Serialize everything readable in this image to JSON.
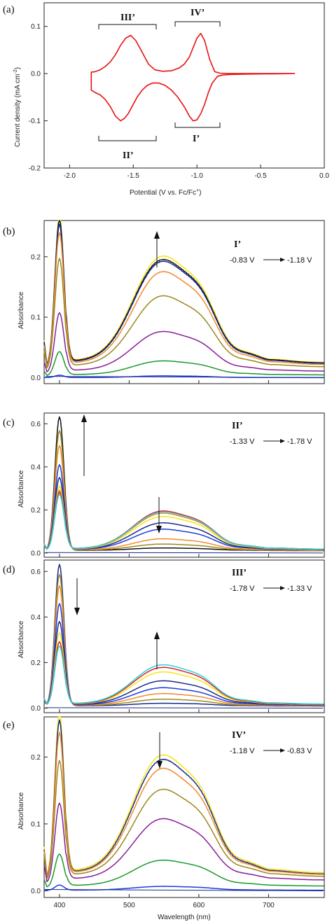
{
  "colors": {
    "cv": "#e81010",
    "black": "#111111",
    "yellow": "#f5e614",
    "navy": "#1a2a8c",
    "orange": "#f28a2c",
    "olive": "#9a8a1e",
    "purple": "#8a1e9a",
    "green": "#1a9a2a",
    "cyan": "#2ad4e0",
    "red": "#e02020",
    "blue": "#1a3ae0",
    "darkyellow": "#c8b400"
  },
  "panels": {
    "a": {
      "label": "(a)",
      "xlabel": "Potential (V vs. Fc/Fc",
      "xlabel_sup": "+",
      "xlabel_end": ")",
      "ylabel": "Current density (mA cm",
      "ylabel_sup": "-2",
      "ylabel_end": ")",
      "peaks": {
        "III": "III’",
        "IV": "IV’",
        "II": "II’",
        "I": "I’"
      }
    },
    "b": {
      "label": "(b)",
      "roman": "I’",
      "v_from": "-0.83 V",
      "v_to": "-1.18 V",
      "ylabel": "Absorbance"
    },
    "c": {
      "label": "(c)",
      "roman": "II’",
      "v_from": "-1.33 V",
      "v_to": "-1.78 V",
      "ylabel": "Absorbance"
    },
    "d": {
      "label": "(d)",
      "roman": "III’",
      "v_from": "-1.78 V",
      "v_to": "-1.33 V",
      "ylabel": "Absorbance"
    },
    "e": {
      "label": "(e)",
      "roman": "IV’",
      "v_from": "-1.18 V",
      "v_to": "-0.83 V",
      "ylabel": "Absorbance",
      "xlabel": "Wavelength (nm)"
    }
  },
  "chart_data": [
    {
      "id": "a",
      "type": "line",
      "xlabel": "Potential (V vs. Fc/Fc+)",
      "ylabel": "Current density (mA cm-2)",
      "xlim": [
        -2.2,
        0.0
      ],
      "ylim": [
        -0.2,
        0.15
      ],
      "xticks": [
        -2.0,
        -1.5,
        -1.0,
        -0.5,
        0.0
      ],
      "xtick_labels": [
        "-2.0",
        "-1.5",
        "-1.0",
        "-0.5",
        "0.0"
      ],
      "yticks": [
        -0.2,
        -0.1,
        0.0,
        0.1
      ],
      "ytick_labels": [
        "-0.2",
        "-0.1",
        "0.0",
        "0.1"
      ],
      "series": [
        {
          "color": "cv",
          "x": [
            -0.23,
            -0.6,
            -0.75,
            -0.82,
            -0.86,
            -0.9,
            -0.94,
            -0.97,
            -1.0,
            -1.03,
            -1.06,
            -1.1,
            -1.14,
            -1.2,
            -1.27,
            -1.33,
            -1.38,
            -1.43,
            -1.48,
            -1.52,
            -1.56,
            -1.6,
            -1.64,
            -1.68,
            -1.72,
            -1.76,
            -1.8,
            -1.83,
            -1.83,
            -1.83,
            -1.8,
            -1.76,
            -1.72,
            -1.68,
            -1.64,
            -1.6,
            -1.57,
            -1.54,
            -1.51,
            -1.47,
            -1.43,
            -1.39,
            -1.35,
            -1.3,
            -1.25,
            -1.2,
            -1.15,
            -1.1,
            -1.06,
            -1.03,
            -1.0,
            -0.97,
            -0.94,
            -0.91,
            -0.88,
            -0.84,
            -0.8,
            -0.75,
            -0.6,
            -0.23
          ],
          "y": [
            0.0,
            0.0,
            0.0,
            0.001,
            0.004,
            0.03,
            0.07,
            0.085,
            0.075,
            0.055,
            0.035,
            0.02,
            0.012,
            0.006,
            0.005,
            0.008,
            0.02,
            0.045,
            0.07,
            0.081,
            0.075,
            0.06,
            0.04,
            0.025,
            0.015,
            0.008,
            0.004,
            0.003,
            -0.02,
            -0.035,
            -0.04,
            -0.045,
            -0.055,
            -0.07,
            -0.09,
            -0.1,
            -0.095,
            -0.085,
            -0.07,
            -0.05,
            -0.035,
            -0.025,
            -0.02,
            -0.02,
            -0.025,
            -0.035,
            -0.05,
            -0.07,
            -0.09,
            -0.1,
            -0.098,
            -0.085,
            -0.065,
            -0.04,
            -0.02,
            -0.006,
            -0.003,
            -0.002,
            -0.001,
            0.0
          ]
        }
      ]
    },
    {
      "id": "b",
      "type": "line",
      "ylabel": "Absorbance",
      "xlim": [
        378,
        780
      ],
      "ylim": [
        -0.01,
        0.26
      ],
      "yticks": [
        0.0,
        0.1,
        0.2
      ],
      "ytick_labels": [
        "0.0",
        "0.1",
        "0.2"
      ],
      "xticks": [
        400,
        500,
        600,
        700
      ],
      "xtick_labels": [],
      "series": [
        {
          "color": "yellow",
          "soret": 0.25,
          "q": 0.183,
          "base": 0.028
        },
        {
          "color": "black",
          "soret": 0.246,
          "q": 0.178,
          "base": 0.027
        },
        {
          "color": "navy",
          "soret": 0.238,
          "q": 0.176,
          "base": 0.026
        },
        {
          "color": "orange",
          "soret": 0.225,
          "q": 0.16,
          "base": 0.024
        },
        {
          "color": "olive",
          "soret": 0.185,
          "q": 0.122,
          "base": 0.02
        },
        {
          "color": "purple",
          "soret": 0.1,
          "q": 0.068,
          "base": 0.012
        },
        {
          "color": "green",
          "soret": 0.04,
          "q": 0.024,
          "base": 0.005
        },
        {
          "color": "blue",
          "soret": 0.004,
          "q": 0.003,
          "base": 0.0
        }
      ]
    },
    {
      "id": "c",
      "type": "line",
      "ylabel": "Absorbance",
      "xlim": [
        378,
        780
      ],
      "ylim": [
        -0.02,
        0.65
      ],
      "yticks": [
        0.0,
        0.2,
        0.4,
        0.6
      ],
      "ytick_labels": [
        "0.0",
        "0.2",
        "0.4",
        "0.6"
      ],
      "xticks": [
        400,
        500,
        600,
        700
      ],
      "xtick_labels": [],
      "series": [
        {
          "color": "black",
          "soret": 0.625,
          "q": 0.012,
          "base": 0.012
        },
        {
          "color": "olive",
          "soret": 0.56,
          "q": 0.03,
          "base": 0.013
        },
        {
          "color": "orange",
          "soret": 0.49,
          "q": 0.055,
          "base": 0.014
        },
        {
          "color": "blue",
          "soret": 0.4,
          "q": 0.1,
          "base": 0.016
        },
        {
          "color": "navy",
          "soret": 0.34,
          "q": 0.13,
          "base": 0.017
        },
        {
          "color": "yellow",
          "soret": 0.3,
          "q": 0.16,
          "base": 0.018
        },
        {
          "color": "orange",
          "soret": 0.28,
          "q": 0.175,
          "base": 0.019
        },
        {
          "color": "red",
          "soret": 0.27,
          "q": 0.185,
          "base": 0.02
        },
        {
          "color": "cyan",
          "soret": 0.26,
          "q": 0.18,
          "base": 0.02
        }
      ]
    },
    {
      "id": "d",
      "type": "line",
      "ylabel": "Absorbance",
      "xlim": [
        378,
        780
      ],
      "ylim": [
        -0.02,
        0.65
      ],
      "yticks": [
        0.0,
        0.2,
        0.4,
        0.6
      ],
      "ytick_labels": [
        "0.0",
        "0.2",
        "0.4",
        "0.6"
      ],
      "xticks": [
        400,
        500,
        600,
        700
      ],
      "xtick_labels": [],
      "series": [
        {
          "color": "navy",
          "soret": 0.625,
          "q": 0.012,
          "base": 0.01
        },
        {
          "color": "olive",
          "soret": 0.58,
          "q": 0.03,
          "base": 0.011
        },
        {
          "color": "orange",
          "soret": 0.53,
          "q": 0.055,
          "base": 0.012
        },
        {
          "color": "blue",
          "soret": 0.45,
          "q": 0.08,
          "base": 0.014
        },
        {
          "color": "navy",
          "soret": 0.37,
          "q": 0.11,
          "base": 0.016
        },
        {
          "color": "yellow",
          "soret": 0.32,
          "q": 0.15,
          "base": 0.017
        },
        {
          "color": "red",
          "soret": 0.28,
          "q": 0.17,
          "base": 0.018
        },
        {
          "color": "cyan",
          "soret": 0.26,
          "q": 0.18,
          "base": 0.02
        }
      ]
    },
    {
      "id": "e",
      "type": "line",
      "ylabel": "Absorbance",
      "xlabel": "Wavelength (nm)",
      "xlim": [
        378,
        780
      ],
      "ylim": [
        -0.01,
        0.26
      ],
      "yticks": [
        0.0,
        0.1,
        0.2
      ],
      "ytick_labels": [
        "0.0",
        "0.1",
        "0.2"
      ],
      "xticks": [
        400,
        500,
        600,
        700
      ],
      "xtick_labels": [
        "400",
        "500",
        "600",
        "700"
      ],
      "series": [
        {
          "color": "yellow",
          "soret": 0.25,
          "q": 0.183,
          "base": 0.03
        },
        {
          "color": "navy",
          "soret": 0.238,
          "q": 0.178,
          "base": 0.028
        },
        {
          "color": "orange",
          "soret": 0.22,
          "q": 0.165,
          "base": 0.027
        },
        {
          "color": "olive",
          "soret": 0.18,
          "q": 0.135,
          "base": 0.024
        },
        {
          "color": "purple",
          "soret": 0.12,
          "q": 0.095,
          "base": 0.018
        },
        {
          "color": "green",
          "soret": 0.05,
          "q": 0.04,
          "base": 0.008
        },
        {
          "color": "blue",
          "soret": 0.008,
          "q": 0.006,
          "base": 0.001
        }
      ]
    }
  ]
}
